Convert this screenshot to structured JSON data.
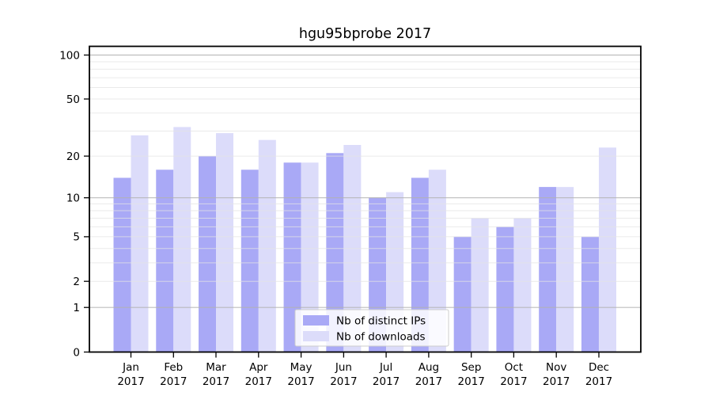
{
  "chart_data": {
    "type": "bar",
    "title": "hgu95bprobe 2017",
    "y_scale": "log1p",
    "categories": [
      "Jan",
      "Feb",
      "Mar",
      "Apr",
      "May",
      "Jun",
      "Jul",
      "Aug",
      "Sep",
      "Oct",
      "Nov",
      "Dec"
    ],
    "x_tick_year": "2017",
    "series": [
      {
        "name": "Nb of distinct IPs",
        "color": "#a9a9f6",
        "values": [
          14,
          16,
          20,
          16,
          18,
          21,
          10,
          14,
          5,
          6,
          12,
          5
        ]
      },
      {
        "name": "Nb of downloads",
        "color": "#dcdcfa",
        "values": [
          28,
          32,
          29,
          26,
          18,
          24,
          11,
          16,
          7,
          7,
          12,
          23
        ]
      }
    ],
    "y_ticks": [
      0,
      1,
      2,
      5,
      10,
      20,
      50,
      100
    ],
    "ylim": [
      0,
      100
    ],
    "grid": {
      "major_values": [
        1,
        10,
        100
      ],
      "minor_values": [
        2,
        3,
        4,
        5,
        6,
        7,
        8,
        9,
        20,
        30,
        40,
        50,
        60,
        70,
        80,
        90
      ],
      "major_color": "#b2b2b2",
      "minor_color": "#e4e4e4"
    },
    "legend": {
      "position": "inside-bottom-center",
      "items": [
        "Nb of distinct IPs",
        "Nb of downloads"
      ],
      "background": "#ffffff",
      "border_color": "#cccccc"
    },
    "frame_color": "#000000",
    "text_color": "#000000"
  }
}
